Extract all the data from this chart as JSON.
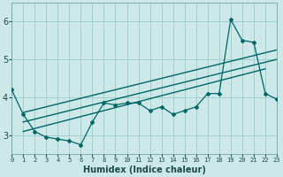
{
  "xlabel": "Humidex (Indice chaleur)",
  "bg_color": "#cce8e8",
  "grid_color": "#99cccc",
  "line_color": "#006666",
  "xlim": [
    0,
    23
  ],
  "ylim": [
    2.5,
    6.5
  ],
  "xticks": [
    0,
    1,
    2,
    3,
    4,
    5,
    6,
    7,
    8,
    9,
    10,
    11,
    12,
    13,
    14,
    15,
    16,
    17,
    18,
    19,
    20,
    21,
    22,
    23
  ],
  "yticks": [
    3,
    4,
    5,
    6
  ],
  "main_x": [
    0,
    1,
    2,
    3,
    4,
    5,
    6,
    7,
    8,
    9,
    10,
    11,
    12,
    13,
    14,
    15,
    16,
    17,
    18,
    19,
    20,
    21,
    22,
    23
  ],
  "main_y": [
    4.2,
    3.55,
    3.1,
    2.95,
    2.9,
    2.85,
    2.75,
    3.35,
    3.85,
    3.8,
    3.85,
    3.85,
    3.65,
    3.75,
    3.55,
    3.65,
    3.75,
    4.1,
    4.1,
    6.05,
    5.5,
    5.45,
    4.1,
    3.95
  ],
  "reg_line_x": [
    1,
    23
  ],
  "reg_line_y": [
    3.35,
    5.0
  ],
  "upper_line_x": [
    1,
    23
  ],
  "upper_line_y": [
    3.6,
    5.25
  ],
  "lower_line_x": [
    1,
    22
  ],
  "lower_line_y": [
    3.1,
    4.75
  ]
}
